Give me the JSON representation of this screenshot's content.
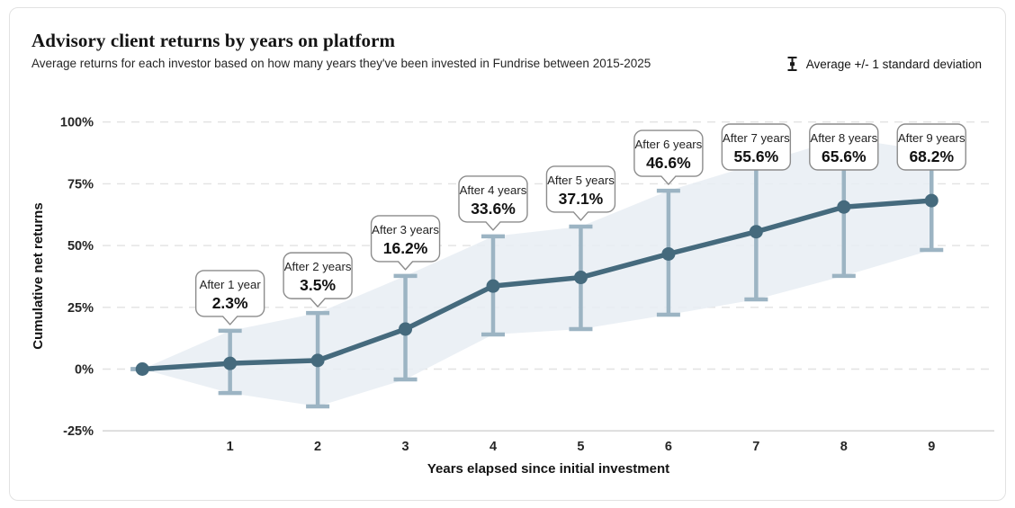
{
  "card": {
    "title": "Advisory client returns by years on platform",
    "subtitle": "Average returns for each investor based on how many years they've been invested in Fundrise between 2015-2025",
    "legend": {
      "icon": "error-bar-icon",
      "label": "Average +/- 1 standard deviation"
    }
  },
  "chart_data": {
    "type": "line",
    "title": "Advisory client returns by years on platform",
    "xlabel": "Years elapsed since initial investment",
    "ylabel": "Cumulative net returns",
    "x": [
      0,
      1,
      2,
      3,
      4,
      5,
      6,
      7,
      8,
      9
    ],
    "xtick_labels": [
      "1",
      "2",
      "3",
      "4",
      "5",
      "6",
      "7",
      "8",
      "9"
    ],
    "ytick_labels": [
      "100%",
      "75%",
      "50%",
      "25%",
      "0%",
      "-25%"
    ],
    "ytick_values": [
      100,
      75,
      50,
      25,
      0,
      -25
    ],
    "ylim": [
      -25,
      100
    ],
    "grid": "horizontal-dashed",
    "legend_position": "top-right",
    "series": [
      {
        "name": "Average cumulative net returns",
        "values": [
          0,
          2.3,
          3.5,
          16.2,
          33.6,
          37.1,
          46.6,
          55.6,
          65.6,
          68.2
        ]
      },
      {
        "name": "Upper bound (+1 standard deviation)",
        "values": [
          0,
          15.5,
          22.7,
          37.7,
          53.7,
          57.7,
          72.2,
          83.0,
          93.5,
          88.2
        ]
      },
      {
        "name": "Lower bound (-1 standard deviation)",
        "values": [
          0,
          -9.7,
          -15.1,
          -4.2,
          14.0,
          16.2,
          22.0,
          28.2,
          37.7,
          48.2
        ]
      }
    ],
    "annotations": [
      {
        "x": 1,
        "label": "After 1 year",
        "value": "2.3%"
      },
      {
        "x": 2,
        "label": "After 2 years",
        "value": "3.5%"
      },
      {
        "x": 3,
        "label": "After 3 years",
        "value": "16.2%"
      },
      {
        "x": 4,
        "label": "After 4 years",
        "value": "33.6%"
      },
      {
        "x": 5,
        "label": "After 5 years",
        "value": "37.1%"
      },
      {
        "x": 6,
        "label": "After 6 years",
        "value": "46.6%"
      },
      {
        "x": 7,
        "label": "After 7 years",
        "value": "55.6%"
      },
      {
        "x": 8,
        "label": "After 8 years",
        "value": "65.6%"
      },
      {
        "x": 9,
        "label": "After 9 years",
        "value": "68.2%"
      }
    ],
    "colors": {
      "line": "#456a7d",
      "marker": "#456a7d",
      "error_bar": "#9cb4c3",
      "band": "#e7edf3",
      "grid": "#e2e2e2",
      "axis_line": "#d8d8d8",
      "annotation_border": "#8c8c8c",
      "annotation_fill": "#ffffff",
      "text": "#1f1f1f"
    }
  }
}
